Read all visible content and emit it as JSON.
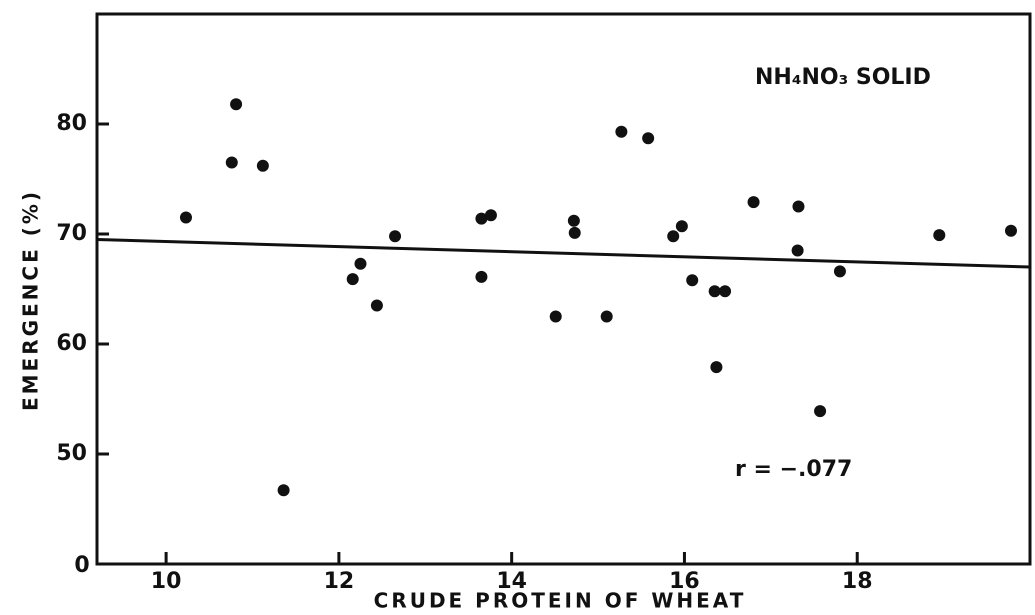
{
  "chart_data": {
    "type": "scatter",
    "x_label": "CRUDE PROTEIN OF WHEAT",
    "y_label": "EMERGENCE    (%)",
    "annotations": [
      "NH₄NO₃ SOLID",
      "r =  −.077"
    ],
    "y_origin_label": "0",
    "color": "#111111",
    "x": [
      10.23,
      10.76,
      10.81,
      11.12,
      11.36,
      12.16,
      12.25,
      12.44,
      12.65,
      13.65,
      13.76,
      13.65,
      14.51,
      14.72,
      14.73,
      15.1,
      15.27,
      15.58,
      15.87,
      15.97,
      16.09,
      16.35,
      16.47,
      16.37,
      16.8,
      17.32,
      17.31,
      17.57,
      17.8,
      18.95,
      19.78
    ],
    "values": [
      71.5,
      76.5,
      81.8,
      76.2,
      46.7,
      65.9,
      67.3,
      63.5,
      69.8,
      71.4,
      71.7,
      66.1,
      62.5,
      71.2,
      70.1,
      62.5,
      79.3,
      78.7,
      69.8,
      70.7,
      65.8,
      64.8,
      64.8,
      57.9,
      72.9,
      72.5,
      68.5,
      53.9,
      66.6,
      69.9,
      70.3
    ],
    "trend_line": {
      "x": [
        9.2,
        20.0
      ],
      "y": [
        69.5,
        67.0
      ]
    },
    "xlim": [
      9.2,
      20.0
    ],
    "ylim": [
      40,
      90
    ],
    "xticks": [
      10,
      12,
      14,
      16,
      18
    ],
    "yticks": [
      50,
      60,
      70,
      80
    ]
  }
}
